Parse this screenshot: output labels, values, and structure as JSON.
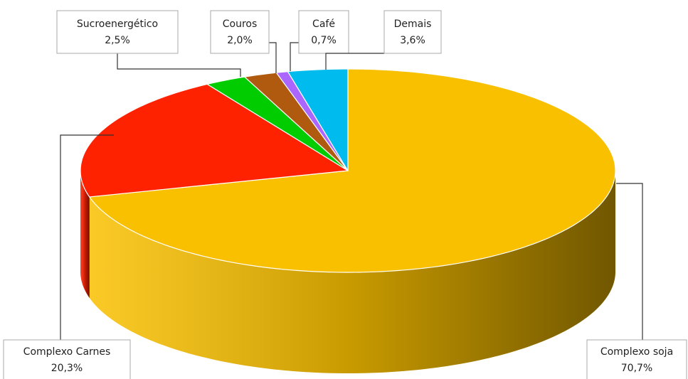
{
  "chart_data": {
    "type": "pie3d",
    "categories": [
      "Complexo soja",
      "Complexo Carnes",
      "Sucroenergético",
      "Couros",
      "Café",
      "Demais"
    ],
    "values": [
      70.7,
      20.3,
      2.5,
      2.0,
      0.7,
      3.6
    ],
    "value_labels": [
      "70,7%",
      "20,3%",
      "2,5%",
      "2,0%",
      "0,7%",
      "3,6%"
    ],
    "colors": [
      "#f9c000",
      "#ff2200",
      "#00cc00",
      "#b05a10",
      "#aa66ff",
      "#00bbee"
    ]
  }
}
